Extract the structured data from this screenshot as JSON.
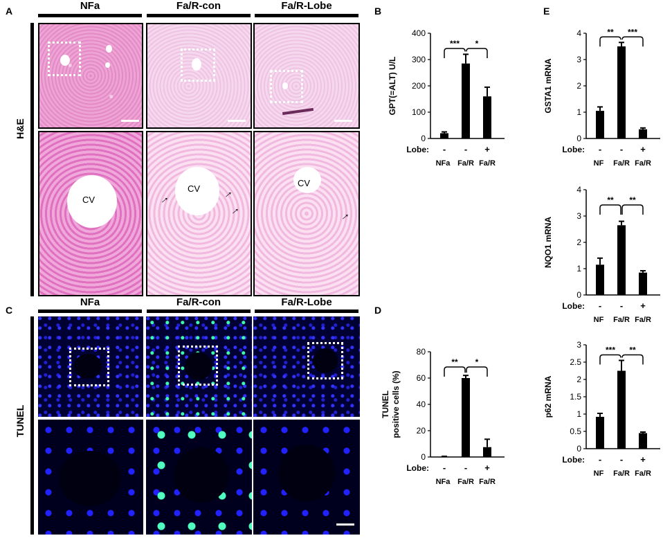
{
  "panel_letters": {
    "A": "A",
    "B": "B",
    "C": "C",
    "D": "D",
    "E": "E"
  },
  "he": {
    "columns": [
      "NFa",
      "Fa/R-con",
      "Fa/R-Lobe"
    ],
    "row_label": "H&E",
    "cv_label": "CV"
  },
  "tunel": {
    "columns": [
      "NFa",
      "Fa/R-con",
      "Fa/R-Lobe"
    ],
    "row_label": "TUNEL"
  },
  "colors": {
    "bar": "#000000",
    "he_pink": "#e48ac6",
    "tunel_blue": "#2020d0",
    "tunel_green": "#40ffb0"
  },
  "chart_data": [
    {
      "id": "B",
      "type": "bar",
      "ylabel": "GPT(=ALT)  U/L",
      "ylim": [
        0,
        400
      ],
      "yticks": [
        "0",
        "100",
        "200",
        "300",
        "400"
      ],
      "lobe_label": "Lobe:",
      "lobe": [
        "-",
        "-",
        "+"
      ],
      "categories": [
        "NFa",
        "Fa/R",
        "Fa/R"
      ],
      "values": [
        20,
        285,
        160
      ],
      "errors": [
        5,
        35,
        35
      ],
      "sig": [
        "***",
        "*"
      ]
    },
    {
      "id": "D",
      "type": "bar",
      "ylabel": "TUNEL\npositive cells (%)",
      "ylim": [
        0,
        80
      ],
      "yticks": [
        "0",
        "20",
        "40",
        "60",
        "80"
      ],
      "lobe_label": "Lobe:",
      "lobe": [
        "-",
        "-",
        "+"
      ],
      "categories": [
        "NFa",
        "Fa/R",
        "Fa/R"
      ],
      "values": [
        0.3,
        60,
        7.5
      ],
      "errors": [
        0.2,
        2,
        6
      ],
      "sig": [
        "**",
        "*"
      ]
    },
    {
      "id": "E1",
      "type": "bar",
      "ylabel": "GSTA1  mRNA",
      "ylim": [
        0,
        4
      ],
      "yticks": [
        "0",
        "1",
        "2",
        "3",
        "4"
      ],
      "lobe_label": "Lobe:",
      "lobe": [
        "-",
        "-",
        "+"
      ],
      "categories": [
        "NF",
        "Fa/R",
        "Fa/R"
      ],
      "values": [
        1.05,
        3.5,
        0.35
      ],
      "errors": [
        0.15,
        0.15,
        0.05
      ],
      "sig": [
        "**",
        "***"
      ]
    },
    {
      "id": "E2",
      "type": "bar",
      "ylabel": "NQO1 mRNA",
      "ylim": [
        0,
        4
      ],
      "yticks": [
        "0",
        "1",
        "2",
        "3",
        "4"
      ],
      "lobe_label": "Lobe:",
      "lobe": [
        "-",
        "-",
        "+"
      ],
      "categories": [
        "NF",
        "Fa/R",
        "Fa/R"
      ],
      "values": [
        1.15,
        2.65,
        0.85
      ],
      "errors": [
        0.25,
        0.15,
        0.07
      ],
      "sig": [
        "**",
        "**"
      ]
    },
    {
      "id": "E3",
      "type": "bar",
      "ylabel": "p62 mRNA",
      "ylim": [
        0,
        3
      ],
      "yticks": [
        "0",
        "0.5",
        "1",
        "1.5",
        "2",
        "2.5",
        "3"
      ],
      "lobe_label": "Lobe:",
      "lobe": [
        "-",
        "-",
        "+"
      ],
      "categories": [
        "NF",
        "Fa/R",
        "Fa/R"
      ],
      "values": [
        0.92,
        2.25,
        0.45
      ],
      "errors": [
        0.1,
        0.3,
        0.03
      ],
      "sig": [
        "***",
        "**"
      ]
    }
  ]
}
